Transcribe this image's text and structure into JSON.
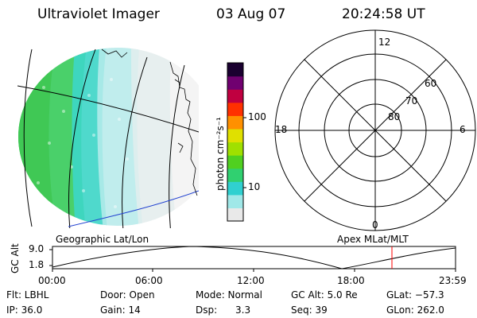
{
  "header": {
    "title": "Ultraviolet Imager",
    "date": "03 Aug 07",
    "time": "20:24:58 UT"
  },
  "geo_panel": {
    "label": "Geographic Lat/Lon"
  },
  "color_bar": {
    "unit_label": "photon cm⁻²s⁻¹",
    "tick_labels": [
      "100",
      "10"
    ],
    "scale": "log",
    "colors": [
      "#e9e9e9",
      "#a0e8e8",
      "#30d0d0",
      "#30d070",
      "#50d020",
      "#a0e000",
      "#e0e000",
      "#ff9000",
      "#ff3000",
      "#c00040",
      "#700070",
      "#1a0030"
    ]
  },
  "polar_panel": {
    "label": "Apex MLat/MLT",
    "mlt_labels": [
      "12",
      "18",
      "6",
      "0"
    ],
    "mlat_labels": [
      "60",
      "70",
      "80"
    ]
  },
  "altitude_plot": {
    "ylabel": "GC Alt",
    "ytick_labels": [
      "9.0",
      "1.8"
    ],
    "xtick_labels": [
      "00:00",
      "06:00",
      "12:00",
      "18:00",
      "23:59"
    ],
    "marker_color": "#ff0000"
  },
  "footer": {
    "filter": "Flt: LBHL",
    "ip": "IP: 36.0",
    "door": "Door: Open",
    "gain": "Gain: 14",
    "mode": "Mode: Normal",
    "dsp_label": "Dsp:",
    "dsp_value": "3.3",
    "gc_alt": "GC Alt: 5.0 Re",
    "seq": "Seq: 39",
    "glat": "GLat: −57.3",
    "glon": "GLon: 262.0"
  }
}
